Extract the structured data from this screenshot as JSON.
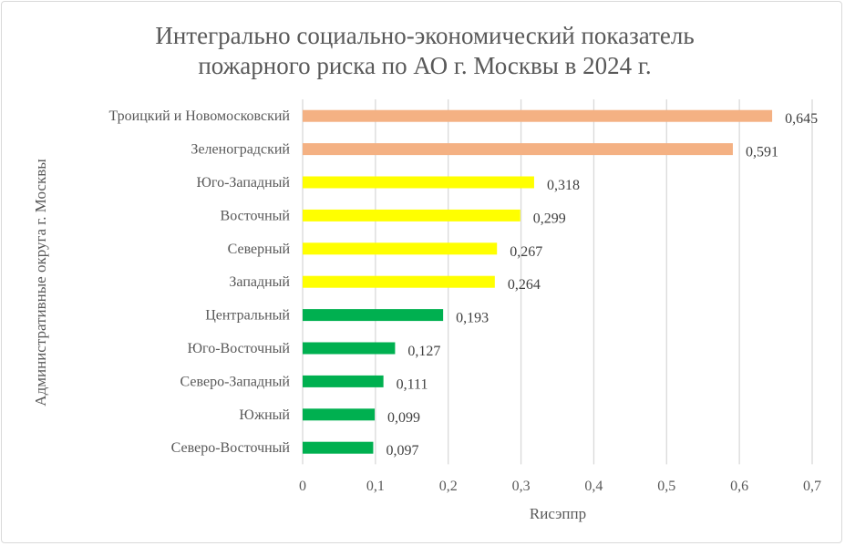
{
  "chart_data": {
    "type": "bar",
    "orientation": "horizontal",
    "title": [
      "Интегрально социально-экономический показатель",
      "пожарного риска по АО г. Москвы в 2024 г."
    ],
    "xlabel": "Rисэппр",
    "ylabel": "Административные округа г. Москвы",
    "xlim": [
      0,
      0.7
    ],
    "xticks": [
      0,
      0.1,
      0.2,
      0.3,
      0.4,
      0.5,
      0.6,
      0.7
    ],
    "xtick_labels": [
      "0",
      "0,1",
      "0,2",
      "0,3",
      "0,4",
      "0,5",
      "0,6",
      "0,7"
    ],
    "grid": "vertical",
    "categories": [
      "Троицкий и Новомосковский",
      "Зеленоградский",
      "Юго-Западный",
      "Восточный",
      "Северный",
      "Западный",
      "Центральный",
      "Юго-Восточный",
      "Северо-Западный",
      "Южный",
      "Северо-Восточный"
    ],
    "values": [
      0.645,
      0.591,
      0.318,
      0.299,
      0.267,
      0.264,
      0.193,
      0.127,
      0.111,
      0.099,
      0.097
    ],
    "value_labels": [
      "0,645",
      "0,591",
      "0,318",
      "0,299",
      "0,267",
      "0,264",
      "0,193",
      "0,127",
      "0,111",
      "0,099",
      "0,097"
    ],
    "colors": [
      "#F4B183",
      "#F4B183",
      "#FFFF00",
      "#FFFF00",
      "#FFFF00",
      "#FFFF00",
      "#00B050",
      "#00B050",
      "#00B050",
      "#00B050",
      "#00B050"
    ]
  }
}
